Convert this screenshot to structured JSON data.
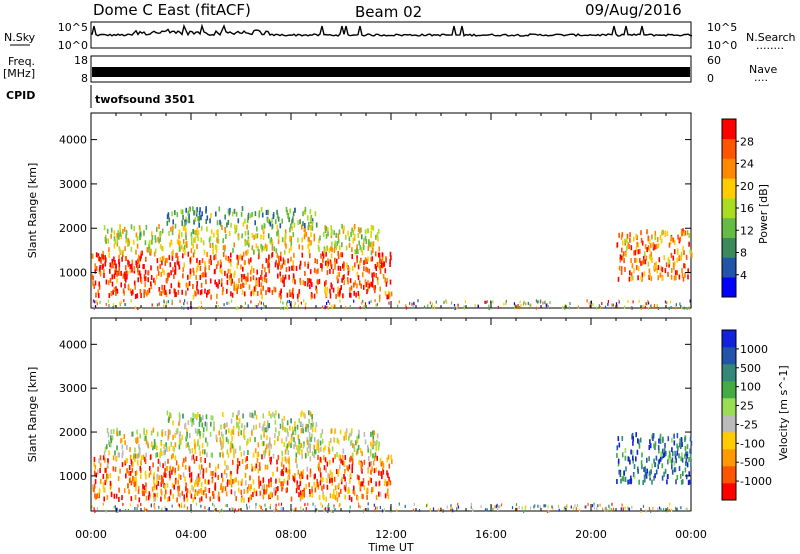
{
  "header": {
    "station": "Dome C East (fitACF)",
    "beam": "Beam 02",
    "date": "09/Aug/2016"
  },
  "strips": {
    "nsky_label": "N.Sky",
    "nsky_ticks": [
      "10^5",
      "10^0"
    ],
    "nsearch_label": "N.Search",
    "nsearch_dots": "........",
    "nsearch_ticks": [
      "10^5",
      "10^0"
    ],
    "freq_label": "Freq.",
    "freq_unit": "[MHz]",
    "freq_ticks": [
      "18",
      "8"
    ],
    "nave_label": "Nave",
    "nave_dots": "....",
    "nave_ticks": [
      "60",
      "0"
    ],
    "cpid_label": "CPID",
    "cpid_value": "twofsound 3501"
  },
  "colors": {
    "power": [
      "#0000ff",
      "#2255aa",
      "#3a8a5a",
      "#66bb44",
      "#aadd22",
      "#ffcc00",
      "#ff8800",
      "#ff5500",
      "#ff0000"
    ],
    "velocity": [
      "#ff0000",
      "#ff5500",
      "#ff9900",
      "#ffcc00",
      "#bbbbbb",
      "#99dd55",
      "#44aa44",
      "#338877",
      "#2255aa",
      "#1122dd"
    ]
  },
  "chart_data": [
    {
      "type": "heatmap",
      "title": "",
      "xlabel": "Time UT",
      "ylabel": "Slant Range [km]",
      "x_ticks": [
        "00:00",
        "04:00",
        "08:00",
        "12:00",
        "16:00",
        "20:00",
        "00:00"
      ],
      "xlim": [
        0,
        24
      ],
      "ylim": [
        200,
        4600
      ],
      "y_ticks": [
        1000,
        2000,
        3000,
        4000
      ],
      "colorbar_label": "Power [dB]",
      "colorbar_ticks": [
        "28",
        "24",
        "20",
        "16",
        "12",
        "8",
        "4"
      ],
      "regions": [
        {
          "t0": 0.0,
          "t1": 12.0,
          "r0": 500,
          "r1": 1500,
          "level": 0.85
        },
        {
          "t0": 0.5,
          "t1": 11.5,
          "r0": 1500,
          "r1": 2100,
          "level": 0.55
        },
        {
          "t0": 3.0,
          "t1": 9.0,
          "r0": 2100,
          "r1": 2500,
          "level": 0.35
        },
        {
          "t0": 21.0,
          "t1": 24.0,
          "r0": 900,
          "r1": 2000,
          "level": 0.75
        }
      ]
    },
    {
      "type": "heatmap",
      "title": "",
      "xlabel": "Time UT",
      "ylabel": "Slant Range [km]",
      "x_ticks": [
        "00:00",
        "04:00",
        "08:00",
        "12:00",
        "16:00",
        "20:00",
        "00:00"
      ],
      "xlim": [
        0,
        24
      ],
      "ylim": [
        200,
        4600
      ],
      "y_ticks": [
        1000,
        2000,
        3000,
        4000
      ],
      "colorbar_label": "Velocity [m s^-1]",
      "colorbar_ticks": [
        "1000",
        "500",
        "100",
        "25",
        "-25",
        "-100",
        "-500",
        "-1000"
      ],
      "regions": [
        {
          "t0": 0.0,
          "t1": 12.0,
          "r0": 500,
          "r1": 1500,
          "level": 0.2
        },
        {
          "t0": 0.5,
          "t1": 11.5,
          "r0": 1500,
          "r1": 2100,
          "level": 0.45
        },
        {
          "t0": 3.0,
          "t1": 9.0,
          "r0": 2100,
          "r1": 2500,
          "level": 0.5
        },
        {
          "t0": 21.0,
          "t1": 24.0,
          "r0": 900,
          "r1": 2000,
          "level": 0.8
        }
      ]
    }
  ]
}
